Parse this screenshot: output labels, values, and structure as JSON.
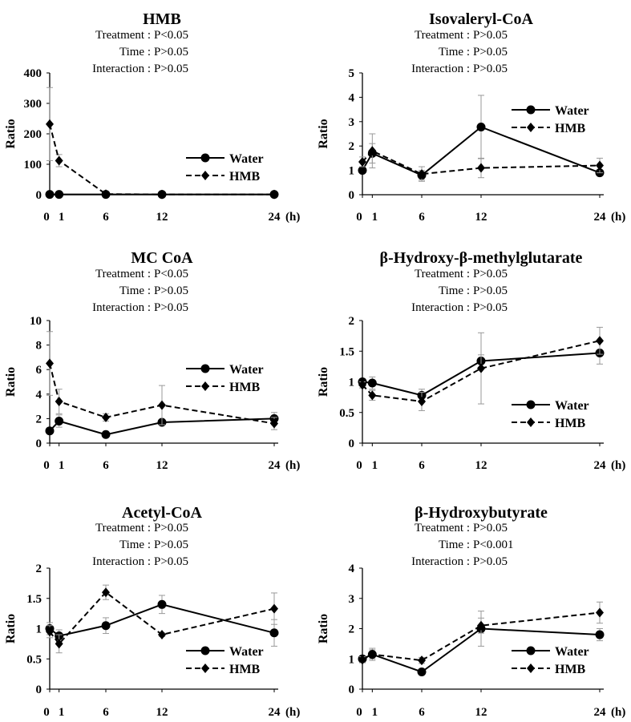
{
  "figure": {
    "hour_label": "(h)",
    "ylabel": "Ratio",
    "stat_labels": {
      "treatment": "Treatment :",
      "time": "Time :",
      "interaction": "Interaction :"
    },
    "x_tick_labels": [
      "0",
      "1",
      "6",
      "12",
      "24"
    ],
    "legend": [
      "Water",
      "HMB"
    ]
  },
  "chart_data": [
    {
      "type": "line",
      "title": "HMB",
      "stats": {
        "treatment": "P<0.05",
        "time": "P>0.05",
        "interaction": "P>0.05"
      },
      "xlabel": "(h)",
      "ylabel": "Ratio",
      "x": [
        0,
        1,
        6,
        12,
        24
      ],
      "ylim": [
        0,
        400
      ],
      "yticks": [
        "0",
        "100",
        "200",
        "300",
        "400"
      ],
      "legend_position": "middle-right",
      "series": [
        {
          "name": "Water",
          "style": "solid",
          "marker": "circle",
          "values": [
            1,
            1,
            1,
            1,
            1
          ],
          "errors": [
            0,
            0,
            0,
            0,
            0
          ]
        },
        {
          "name": "HMB",
          "style": "dashed",
          "marker": "diamond",
          "values": [
            232,
            112,
            2,
            1,
            1
          ],
          "errors": [
            120,
            20,
            1,
            0,
            0
          ]
        }
      ]
    },
    {
      "type": "line",
      "title": "Isovaleryl-CoA",
      "stats": {
        "treatment": "P>0.05",
        "time": "P>0.05",
        "interaction": "P>0.05"
      },
      "xlabel": "(h)",
      "ylabel": "Ratio",
      "x": [
        0,
        1,
        6,
        12,
        24
      ],
      "ylim": [
        0,
        5
      ],
      "yticks": [
        "0",
        "1",
        "2",
        "3",
        "4",
        "5"
      ],
      "legend_position": "upper-right",
      "series": [
        {
          "name": "Water",
          "style": "solid",
          "marker": "circle",
          "values": [
            1.0,
            1.7,
            0.8,
            2.78,
            0.9
          ],
          "errors": [
            0.1,
            0.4,
            0.2,
            1.3,
            0.1
          ]
        },
        {
          "name": "HMB",
          "style": "dashed",
          "marker": "diamond",
          "values": [
            1.35,
            1.8,
            0.85,
            1.1,
            1.2
          ],
          "errors": [
            0.2,
            0.7,
            0.3,
            0.4,
            0.3
          ]
        }
      ]
    },
    {
      "type": "line",
      "title": "MC CoA",
      "stats": {
        "treatment": "P<0.05",
        "time": "P>0.05",
        "interaction": "P>0.05"
      },
      "xlabel": "(h)",
      "ylabel": "Ratio",
      "x": [
        0,
        1,
        6,
        12,
        24
      ],
      "ylim": [
        0,
        10
      ],
      "yticks": [
        "0",
        "2",
        "4",
        "6",
        "8",
        "10"
      ],
      "legend_position": "middle-right",
      "series": [
        {
          "name": "Water",
          "style": "solid",
          "marker": "circle",
          "values": [
            1.0,
            1.8,
            0.7,
            1.7,
            2.0
          ],
          "errors": [
            0.2,
            0.5,
            0.1,
            0.2,
            0.5
          ]
        },
        {
          "name": "HMB",
          "style": "dashed",
          "marker": "diamond",
          "values": [
            6.5,
            3.4,
            2.1,
            3.1,
            1.6
          ],
          "errors": [
            2.6,
            1.0,
            0.3,
            1.6,
            0.5
          ]
        }
      ]
    },
    {
      "type": "line",
      "title": "β-Hydroxy-β-methylglutarate",
      "stats": {
        "treatment": "P>0.05",
        "time": "P>0.05",
        "interaction": "P>0.05"
      },
      "xlabel": "(h)",
      "ylabel": "Ratio",
      "x": [
        0,
        1,
        6,
        12,
        24
      ],
      "ylim": [
        0,
        2
      ],
      "yticks": [
        "0",
        "0.5",
        "1",
        "1.5",
        "2"
      ],
      "legend_position": "lower-right",
      "series": [
        {
          "name": "Water",
          "style": "solid",
          "marker": "circle",
          "values": [
            1.0,
            0.98,
            0.78,
            1.34,
            1.47
          ],
          "errors": [
            0.05,
            0.1,
            0.1,
            0.1,
            0.18
          ]
        },
        {
          "name": "HMB",
          "style": "dashed",
          "marker": "diamond",
          "values": [
            0.95,
            0.78,
            0.68,
            1.22,
            1.67
          ],
          "errors": [
            0.05,
            0.08,
            0.15,
            0.58,
            0.22
          ]
        }
      ]
    },
    {
      "type": "line",
      "title": "Acetyl-CoA",
      "stats": {
        "treatment": "P>0.05",
        "time": "P>0.05",
        "interaction": "P>0.05"
      },
      "xlabel": "(h)",
      "ylabel": "Ratio",
      "x": [
        0,
        1,
        6,
        12,
        24
      ],
      "ylim": [
        0,
        2
      ],
      "yticks": [
        "0",
        "0.5",
        "1",
        "1.5",
        "2"
      ],
      "legend_position": "lower-right",
      "series": [
        {
          "name": "Water",
          "style": "solid",
          "marker": "circle",
          "values": [
            1.0,
            0.88,
            1.05,
            1.4,
            0.93
          ],
          "errors": [
            0.1,
            0.1,
            0.13,
            0.15,
            0.22
          ]
        },
        {
          "name": "HMB",
          "style": "dashed",
          "marker": "diamond",
          "values": [
            0.95,
            0.75,
            1.6,
            0.9,
            1.33
          ],
          "errors": [
            0.1,
            0.15,
            0.12,
            0.03,
            0.26
          ]
        }
      ]
    },
    {
      "type": "line",
      "title": "β-Hydroxybutyrate",
      "stats": {
        "treatment": "P>0.05",
        "time": "P<0.001",
        "interaction": "P>0.05"
      },
      "xlabel": "(h)",
      "ylabel": "Ratio",
      "x": [
        0,
        1,
        6,
        12,
        24
      ],
      "ylim": [
        0,
        4
      ],
      "yticks": [
        "0",
        "1",
        "2",
        "3",
        "4"
      ],
      "legend_position": "lower-right",
      "series": [
        {
          "name": "Water",
          "style": "solid",
          "marker": "circle",
          "values": [
            1.0,
            1.15,
            0.57,
            2.0,
            1.8
          ],
          "errors": [
            0.1,
            0.15,
            0.05,
            0.58,
            0.2
          ]
        },
        {
          "name": "HMB",
          "style": "dashed",
          "marker": "diamond",
          "values": [
            0.97,
            1.15,
            0.95,
            2.1,
            2.53
          ],
          "errors": [
            0.1,
            0.2,
            0.1,
            0.25,
            0.35
          ]
        }
      ]
    }
  ]
}
